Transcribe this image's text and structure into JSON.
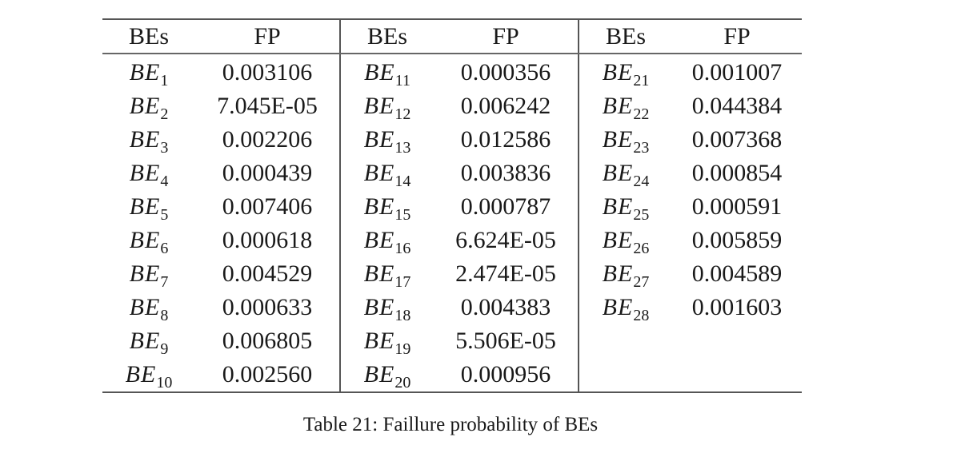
{
  "table": {
    "headers": [
      "BEs",
      "FP",
      "BEs",
      "FP",
      "BEs",
      "FP"
    ],
    "groups": [
      [
        {
          "be": "BE",
          "sub": "1",
          "fp": "0.003106"
        },
        {
          "be": "BE",
          "sub": "2",
          "fp": "7.045E-05"
        },
        {
          "be": "BE",
          "sub": "3",
          "fp": "0.002206"
        },
        {
          "be": "BE",
          "sub": "4",
          "fp": "0.000439"
        },
        {
          "be": "BE",
          "sub": "5",
          "fp": "0.007406"
        },
        {
          "be": "BE",
          "sub": "6",
          "fp": "0.000618"
        },
        {
          "be": "BE",
          "sub": "7",
          "fp": "0.004529"
        },
        {
          "be": "BE",
          "sub": "8",
          "fp": "0.000633"
        },
        {
          "be": "BE",
          "sub": "9",
          "fp": "0.006805"
        },
        {
          "be": "BE",
          "sub": "10",
          "fp": "0.002560"
        }
      ],
      [
        {
          "be": "BE",
          "sub": "11",
          "fp": "0.000356"
        },
        {
          "be": "BE",
          "sub": "12",
          "fp": "0.006242"
        },
        {
          "be": "BE",
          "sub": "13",
          "fp": "0.012586"
        },
        {
          "be": "BE",
          "sub": "14",
          "fp": "0.003836"
        },
        {
          "be": "BE",
          "sub": "15",
          "fp": "0.000787"
        },
        {
          "be": "BE",
          "sub": "16",
          "fp": "6.624E-05"
        },
        {
          "be": "BE",
          "sub": "17",
          "fp": "2.474E-05"
        },
        {
          "be": "BE",
          "sub": "18",
          "fp": "0.004383"
        },
        {
          "be": "BE",
          "sub": "19",
          "fp": "5.506E-05"
        },
        {
          "be": "BE",
          "sub": "20",
          "fp": "0.000956"
        }
      ],
      [
        {
          "be": "BE",
          "sub": "21",
          "fp": "0.001007"
        },
        {
          "be": "BE",
          "sub": "22",
          "fp": "0.044384"
        },
        {
          "be": "BE",
          "sub": "23",
          "fp": "0.007368"
        },
        {
          "be": "BE",
          "sub": "24",
          "fp": "0.000854"
        },
        {
          "be": "BE",
          "sub": "25",
          "fp": "0.000591"
        },
        {
          "be": "BE",
          "sub": "26",
          "fp": "0.005859"
        },
        {
          "be": "BE",
          "sub": "27",
          "fp": "0.004589"
        },
        {
          "be": "BE",
          "sub": "28",
          "fp": "0.001603"
        }
      ]
    ]
  },
  "caption": "Table 21: Faillure probability of BEs"
}
